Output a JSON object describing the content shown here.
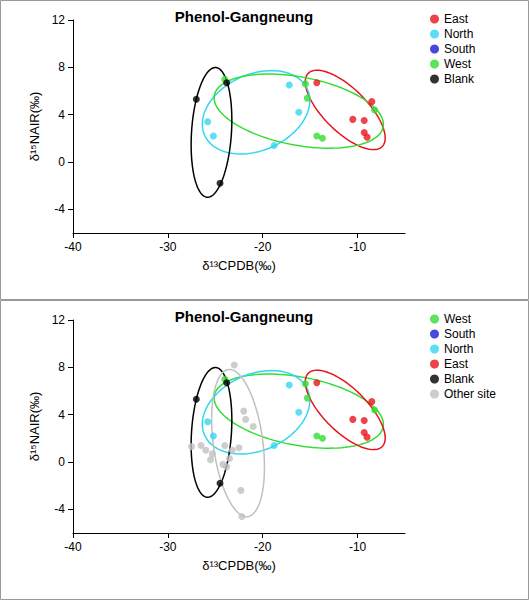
{
  "chart_data": [
    {
      "type": "scatter",
      "title": "Phenol-Gangneung",
      "x_label": "δ¹³CPDB(‰)",
      "y_label": "δ¹⁵NAIR(‰)",
      "xlim": [
        -40,
        -5
      ],
      "xticks": [
        -40,
        -30,
        -20,
        -10
      ],
      "ylim": [
        -6,
        12
      ],
      "yticks": [
        -4,
        0,
        4,
        8,
        12
      ],
      "legend": "right",
      "marker": "circle",
      "grid": false,
      "series": [
        {
          "name": "East",
          "color": "#e8141c",
          "x": [
            -14.3,
            -8.5,
            -10.5,
            -9.3,
            -9.3,
            -9.0
          ],
          "y": [
            6.7,
            5.1,
            3.6,
            3.5,
            2.5,
            2.1
          ],
          "ellipse": {
            "cx": -11.3,
            "cy": 4.4,
            "rx": 5.0,
            "ry": 2.0,
            "angle": -36
          }
        },
        {
          "name": "North",
          "color": "#33d6f0",
          "x": [
            -25.8,
            -25.2,
            -18.8,
            -17.2,
            -16.2
          ],
          "y": [
            3.4,
            2.2,
            1.4,
            6.5,
            4.2
          ],
          "ellipse": {
            "cx": -20.7,
            "cy": 4.2,
            "rx": 5.8,
            "ry": 3.3,
            "angle": 15
          }
        },
        {
          "name": "South",
          "color": "#1a1ad6",
          "x": [],
          "y": []
        },
        {
          "name": "West",
          "color": "#33dd33",
          "x": [
            -24.0,
            -15.5,
            -15.3,
            -14.3,
            -13.7,
            -8.2
          ],
          "y": [
            7.0,
            6.6,
            5.4,
            2.2,
            2.0,
            4.4
          ],
          "ellipse": {
            "cx": -16.2,
            "cy": 4.3,
            "rx": 9.0,
            "ry": 2.9,
            "angle": -8
          }
        },
        {
          "name": "Blank",
          "color": "#000000",
          "x": [
            -27.0,
            -24.5,
            -23.8
          ],
          "y": [
            5.3,
            -1.8,
            6.7
          ],
          "ellipse": {
            "cx": -25.4,
            "cy": 2.5,
            "rx": 5.5,
            "ry": 2.1,
            "angle": 85
          }
        }
      ]
    },
    {
      "type": "scatter",
      "title": "Phenol-Gangneung",
      "x_label": "δ¹³CPDB(‰)",
      "y_label": "δ¹⁵NAIR(‰)",
      "xlim": [
        -40,
        -5
      ],
      "xticks": [
        -40,
        -30,
        -20,
        -10
      ],
      "ylim": [
        -6,
        12
      ],
      "yticks": [
        -4,
        0,
        4,
        8,
        12
      ],
      "legend": "right",
      "marker": "circle",
      "grid": false,
      "series": [
        {
          "name": "West",
          "color": "#33dd33",
          "x": [
            -24.0,
            -15.5,
            -15.3,
            -14.3,
            -13.7,
            -8.2
          ],
          "y": [
            7.0,
            6.6,
            5.4,
            2.2,
            2.0,
            4.4
          ],
          "ellipse": {
            "cx": -16.2,
            "cy": 4.3,
            "rx": 9.0,
            "ry": 2.9,
            "angle": -8
          }
        },
        {
          "name": "South",
          "color": "#1a1ad6",
          "x": [],
          "y": []
        },
        {
          "name": "North",
          "color": "#33d6f0",
          "x": [
            -25.8,
            -25.2,
            -18.8,
            -17.2,
            -16.2
          ],
          "y": [
            3.4,
            2.2,
            1.4,
            6.5,
            4.2
          ],
          "ellipse": {
            "cx": -20.7,
            "cy": 4.2,
            "rx": 5.8,
            "ry": 3.3,
            "angle": 15
          }
        },
        {
          "name": "East",
          "color": "#e8141c",
          "x": [
            -14.3,
            -8.5,
            -10.5,
            -9.3,
            -9.3,
            -9.0
          ],
          "y": [
            6.7,
            5.1,
            3.6,
            3.5,
            2.5,
            2.1
          ],
          "ellipse": {
            "cx": -11.3,
            "cy": 4.4,
            "rx": 5.0,
            "ry": 2.0,
            "angle": -36
          }
        },
        {
          "name": "Blank",
          "color": "#000000",
          "x": [
            -27.0,
            -24.5,
            -23.8
          ],
          "y": [
            5.3,
            -1.8,
            6.7
          ],
          "ellipse": {
            "cx": -25.4,
            "cy": 2.5,
            "rx": 5.5,
            "ry": 2.1,
            "angle": 85
          }
        },
        {
          "name": "Other site",
          "color": "#c0c0c0",
          "x": [
            -23.0,
            -22.0,
            -21.8,
            -21.0,
            -27.5,
            -26.5,
            -26.0,
            -25.5,
            -25.3,
            -24.0,
            -23.5,
            -23.2,
            -22.5,
            -24.2,
            -23.8,
            -22.3,
            -22.2
          ],
          "y": [
            8.2,
            4.3,
            3.6,
            3.0,
            1.3,
            1.4,
            1.0,
            0.2,
            0.7,
            1.4,
            0.3,
            1.0,
            1.2,
            -0.2,
            -0.4,
            -2.4,
            -4.6
          ],
          "ellipse": {
            "cx": -22.6,
            "cy": 1.6,
            "rx": 6.3,
            "ry": 2.6,
            "angle": 100
          }
        }
      ]
    }
  ]
}
